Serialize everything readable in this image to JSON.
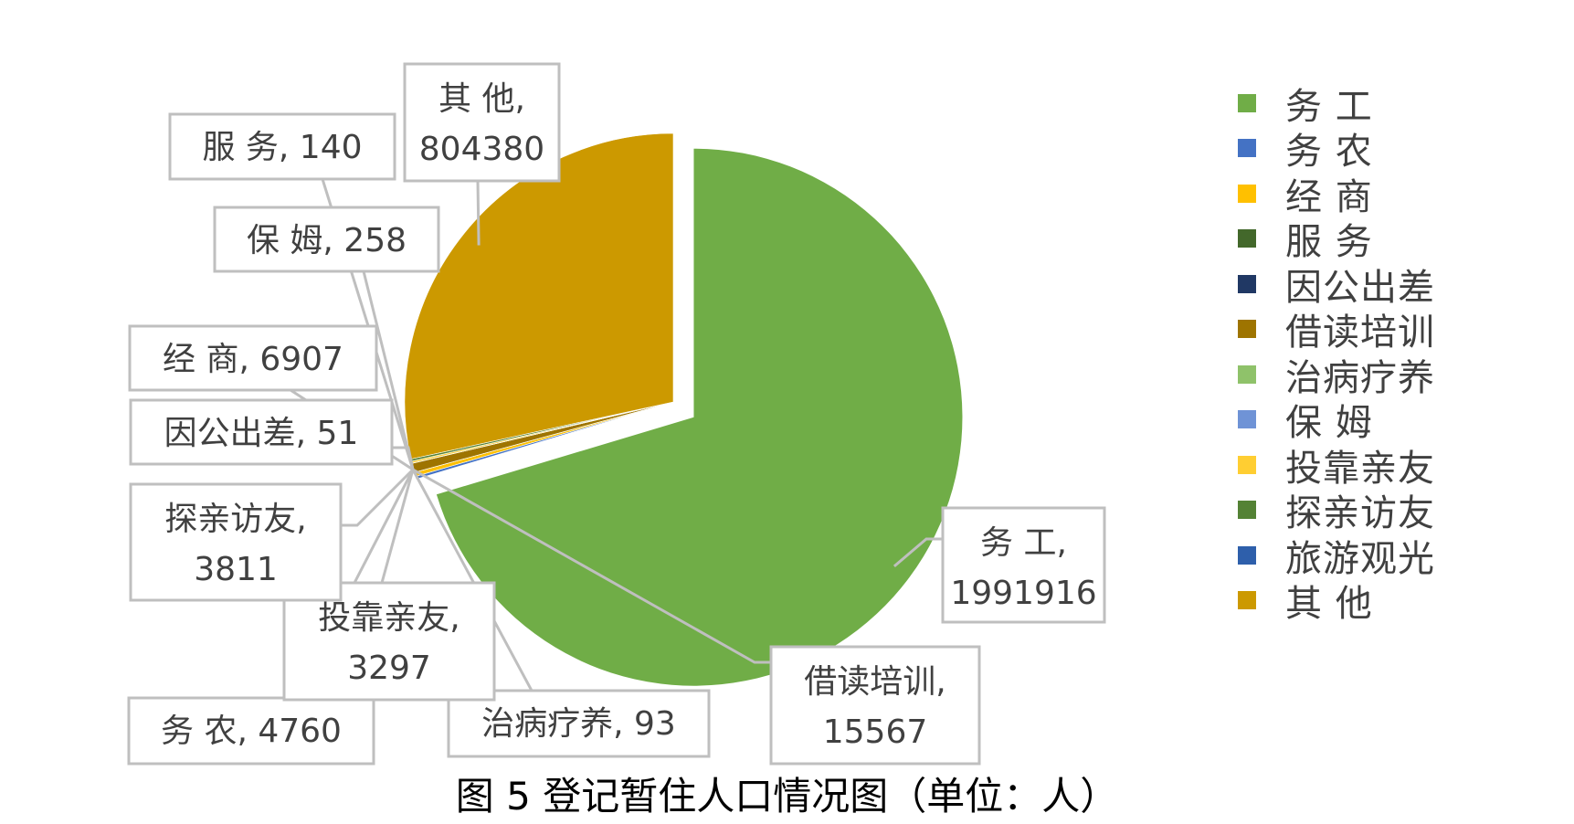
{
  "chart_data": {
    "type": "pie",
    "caption": "图 5 登记暂住人口情况图（单位：人）",
    "slices": [
      {
        "name": "务 工",
        "value": 1991916,
        "color": "#70AD47",
        "label_name": "务 工,",
        "label_value": "1991916"
      },
      {
        "name": "务 农",
        "value": 4760,
        "color": "#4472C4",
        "label_name": "务 农,",
        "label_value": "4760"
      },
      {
        "name": "经 商",
        "value": 6907,
        "color": "#FFC000",
        "label_name": "经 商,",
        "label_value": "6907"
      },
      {
        "name": "服 务",
        "value": 140,
        "color": "#43682B",
        "label_name": "服 务,",
        "label_value": "140"
      },
      {
        "name": "因公出差",
        "value": 51,
        "color": "#203864",
        "label_name": "因公出差,",
        "label_value": "51"
      },
      {
        "name": "借读培训",
        "value": 15567,
        "color": "#9E7400",
        "label_name": "借读培训,",
        "label_value": "15567"
      },
      {
        "name": "治病疗养",
        "value": 93,
        "color": "#8FC26A",
        "label_name": "治病疗养,",
        "label_value": "93"
      },
      {
        "name": "保 姆",
        "value": 258,
        "color": "#6F93D6",
        "label_name": "保 姆,",
        "label_value": "258"
      },
      {
        "name": "投靠亲友",
        "value": 3297,
        "color": "#FFCE32",
        "label_name": "投靠亲友,",
        "label_value": "3297"
      },
      {
        "name": "探亲访友",
        "value": 3811,
        "color": "#548235",
        "label_name": "探亲访友,",
        "label_value": "3811"
      },
      {
        "name": "旅游观光",
        "value": 0,
        "color": "#2E5FAB",
        "label_name": "",
        "label_value": ""
      },
      {
        "name": "其 他",
        "value": 804380,
        "color": "#CC9900",
        "label_name": "其 他,",
        "label_value": "804380"
      }
    ],
    "legend_position": "right"
  }
}
